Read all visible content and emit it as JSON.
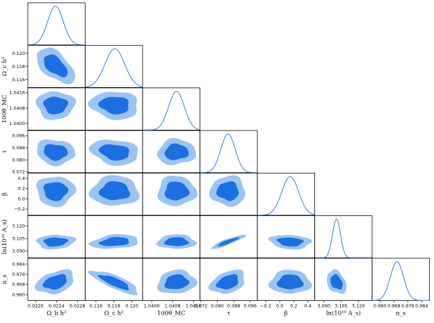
{
  "chart_data": {
    "type": "triangle_corner",
    "params": [
      {
        "label": "Ω_b h²",
        "ticks": [
          "0.0220",
          "0.0224",
          "0.0228"
        ],
        "range": [
          0.02185,
          0.02295
        ],
        "tickvals": [
          0.022,
          0.0224,
          0.0228
        ],
        "mean": 0.02238,
        "sigma": 0.00015
      },
      {
        "label": "Ω_c h²",
        "ticks": [
          "0.116",
          "0.118",
          "0.120"
        ],
        "range": [
          0.1148,
          0.1212
        ],
        "tickvals": [
          0.116,
          0.118,
          0.12
        ],
        "mean": 0.1181,
        "sigma": 0.0011
      },
      {
        "label": "100θ_MC",
        "ticks": [
          "1.0400",
          "1.0408",
          "1.0416"
        ],
        "range": [
          1.03965,
          1.04185
        ],
        "tickvals": [
          1.04,
          1.0408,
          1.0416
        ],
        "mean": 1.04095,
        "sigma": 0.0003
      },
      {
        "label": "τ",
        "ticks": [
          "0.072",
          "0.080",
          "0.088",
          "0.096"
        ],
        "range": [
          0.0715,
          0.0995
        ],
        "tickvals": [
          0.072,
          0.08,
          0.088,
          0.096
        ],
        "mean": 0.0852,
        "sigma": 0.0035
      },
      {
        "label": "β",
        "ticks": [
          "−0.2",
          "0.0",
          "0.2",
          "0.4"
        ],
        "range": [
          -0.32,
          0.5
        ],
        "tickvals": [
          -0.2,
          0.0,
          0.2,
          0.4
        ],
        "mean": 0.15,
        "sigma": 0.12
      },
      {
        "label": "ln(10¹⁰ A_s)",
        "ticks": [
          "3.090",
          "3.105",
          "3.120"
        ],
        "range": [
          3.082,
          3.132
        ],
        "tickvals": [
          3.09,
          3.105,
          3.12
        ],
        "mean": 3.101,
        "sigma": 0.0035
      },
      {
        "label": "n_s",
        "ticks": [
          "0.960",
          "0.968",
          "0.976",
          "0.984"
        ],
        "range": [
          0.9555,
          0.9885
        ],
        "tickvals": [
          0.96,
          0.968,
          0.976,
          0.984
        ],
        "mean": 0.9698,
        "sigma": 0.0038
      }
    ],
    "xlabels": [
      "Ω_b h²",
      "Ω_c h²",
      "100θ_MC",
      "τ",
      "β",
      "ln(10¹⁰ A_s)",
      "n_s"
    ],
    "ylabels": [
      "Ω_c h²",
      "100θ_MC",
      "τ",
      "β",
      "ln(10¹⁰ A_s)",
      "n_s"
    ],
    "contour_levels": [
      "68%",
      "95%"
    ],
    "colors": {
      "inner": "#1a6fe3",
      "outer": "#9cc4f2",
      "line": "#2f7fe0"
    }
  }
}
